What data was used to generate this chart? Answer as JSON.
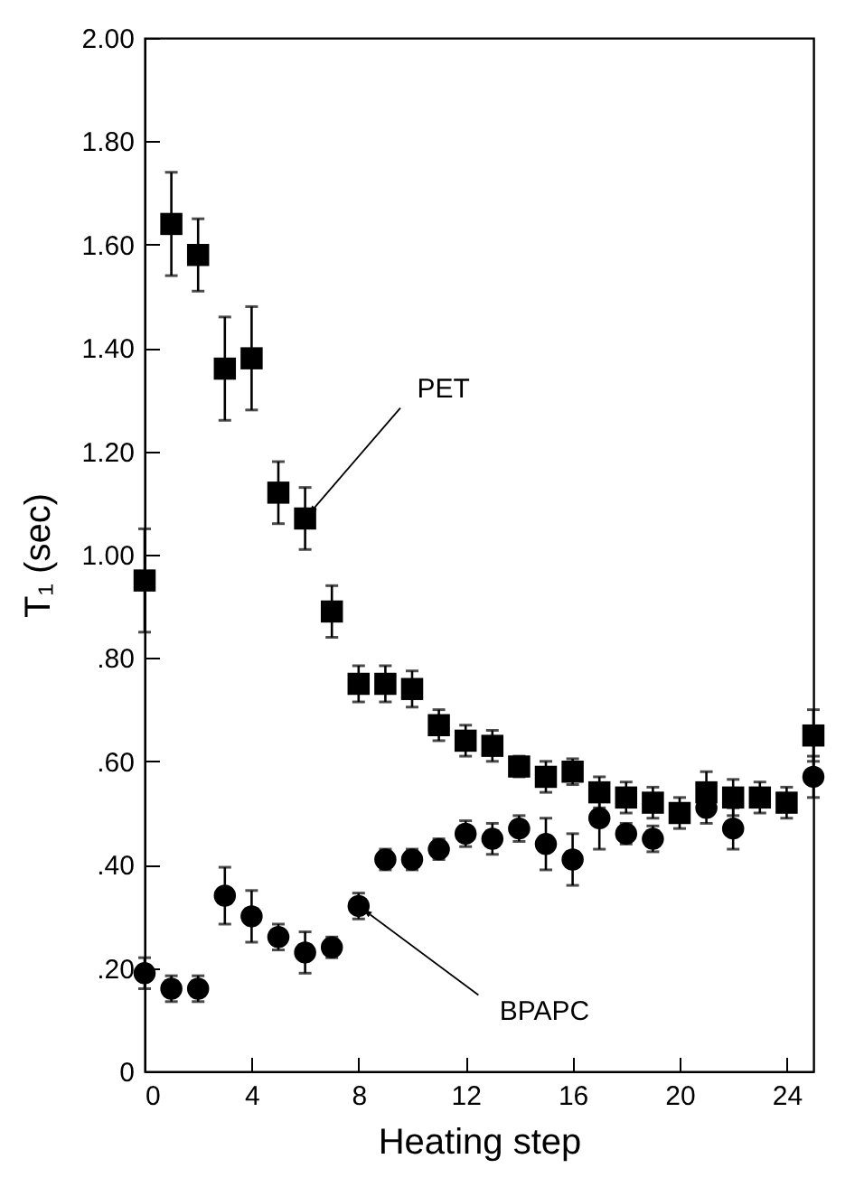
{
  "chart_data": {
    "type": "scatter",
    "xlabel": "Heating step",
    "ylabel": "T₁ (sec)",
    "x": [
      0,
      1,
      2,
      3,
      4,
      5,
      6,
      7,
      8,
      9,
      10,
      11,
      12,
      13,
      14,
      15,
      16,
      17,
      18,
      19,
      20,
      21,
      22,
      23,
      24,
      25
    ],
    "series": [
      {
        "marker": "square",
        "color": "#000000",
        "values": [
          0.95,
          1.64,
          1.58,
          1.36,
          1.38,
          1.12,
          1.07,
          0.89,
          0.75,
          0.75,
          0.74,
          0.67,
          0.64,
          0.63,
          0.59,
          0.57,
          0.58,
          0.54,
          0.53,
          0.52,
          0.5,
          0.54,
          0.53,
          0.53,
          0.52,
          0.65
        ],
        "errors": [
          0.1,
          0.1,
          0.07,
          0.1,
          0.1,
          0.06,
          0.06,
          0.05,
          0.035,
          0.035,
          0.035,
          0.03,
          0.03,
          0.03,
          0.02,
          0.03,
          0.025,
          0.03,
          0.03,
          0.03,
          0.03,
          0.04,
          0.035,
          0.03,
          0.03,
          0.05
        ]
      },
      {
        "marker": "circle",
        "color": "#000000",
        "values": [
          0.19,
          0.16,
          0.16,
          0.34,
          0.3,
          0.26,
          0.23,
          0.24,
          0.32,
          0.41,
          0.41,
          0.43,
          0.46,
          0.45,
          0.47,
          0.44,
          0.41,
          0.49,
          0.46,
          0.45,
          null,
          0.51,
          0.47,
          null,
          null,
          0.57
        ],
        "errors": [
          0.03,
          0.025,
          0.025,
          0.055,
          0.05,
          0.025,
          0.04,
          0.02,
          0.025,
          0.02,
          0.02,
          0.02,
          0.025,
          0.03,
          0.025,
          0.05,
          0.05,
          0.06,
          0.02,
          0.025,
          null,
          0.03,
          0.04,
          null,
          null,
          0.04
        ]
      }
    ],
    "xlim": [
      0,
      25
    ],
    "xticks": [
      0,
      4,
      8,
      12,
      16,
      20,
      24
    ],
    "ylim": [
      0,
      2
    ],
    "yticks": [
      0,
      {
        "value": 0.2,
        "label": ".20"
      },
      {
        "value": 0.4,
        "label": ".40"
      },
      {
        "value": 0.6,
        "label": ".60"
      },
      {
        "value": 0.8,
        "label": ".80"
      },
      {
        "value": 1,
        "label": "1.00"
      },
      {
        "value": 1.2,
        "label": "1.20"
      },
      {
        "value": 1.4,
        "label": "1.40"
      },
      {
        "value": 1.6,
        "label": "1.60"
      },
      {
        "value": 1.8,
        "label": "1.80"
      },
      {
        "value": 2,
        "label": "2.00"
      }
    ],
    "annotations": [
      {
        "text": "PET",
        "x": 6,
        "y": 1.07
      },
      {
        "text": "BPAPC",
        "x": 8,
        "y": 0.32
      }
    ],
    "grid": false
  }
}
